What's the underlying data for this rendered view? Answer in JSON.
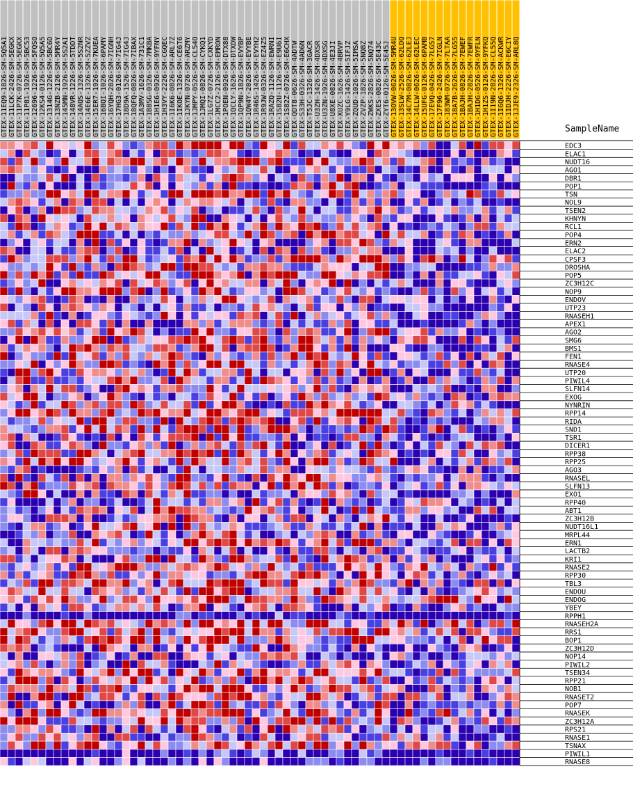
{
  "chart_data": {
    "type": "heatmap",
    "axis_title": "SampleName",
    "highlight_color": "#ffc000",
    "normal_header_color": "#c0c0c0",
    "scale_colors": [
      "#2a00b0",
      "#4a3fe0",
      "#8c8cf0",
      "#c8c8f8",
      "#ffc8e0",
      "#f08c8c",
      "#e04848",
      "#c00000"
    ],
    "columns": [
      {
        "label": "GTEX-11EQ9-1826-SM-5Q5A1",
        "highlight": false
      },
      {
        "label": "GTEX-11LCK-2426-SM-5EGKX",
        "highlight": false
      },
      {
        "label": "GTEX-11P7K-0726-SM-5EGKX",
        "highlight": false
      },
      {
        "label": "GTEX-11P81-1926-SM-5BC53",
        "highlight": false
      },
      {
        "label": "GTEX-12696-1226-SM-5FQSO",
        "highlight": false
      },
      {
        "label": "GTEX-12KS4-0126-SM-5Q5A5",
        "highlight": false
      },
      {
        "label": "GTEX-1314G-1226-SM-5BC6D",
        "highlight": false
      },
      {
        "label": "GTEX-13NZB-2126-SM-5MR4Y",
        "highlight": false
      },
      {
        "label": "GTEX-145MN-1926-SM-5S2AI",
        "highlight": false
      },
      {
        "label": "GTEX-148VR-1226-SM-5TDDT",
        "highlight": false
      },
      {
        "label": "GTEX-14AQS-1326-SM-5S2NR",
        "highlight": false
      },
      {
        "label": "GTEX-14E6E-1326-SM-5ZZVZ",
        "highlight": false
      },
      {
        "label": "GTEX-15ER7-1926-SM-7KUEA",
        "highlight": false
      },
      {
        "label": "GTEX-16BQI-1026-SM-6PAMY",
        "highlight": false
      },
      {
        "label": "GTEX-16YQH-2826-SM-7IGNH",
        "highlight": false
      },
      {
        "label": "GTEX-17HG3-0126-SM-7IG4J",
        "highlight": false
      },
      {
        "label": "GTEX-18D9A-1526-SM-7IG4J",
        "highlight": false
      },
      {
        "label": "GTEX-18QFQ-0826-SM-7IBAX",
        "highlight": false
      },
      {
        "label": "GTEX-1A3MV-1626-SM-731C1",
        "highlight": false
      },
      {
        "label": "GTEX-1B8SG-0326-SM-7MKBA",
        "highlight": false
      },
      {
        "label": "GTEX-1H1E6-0926-SM-9YFNY",
        "highlight": false
      },
      {
        "label": "GTEX-1H3VY-2226-SM-CGQEC",
        "highlight": false
      },
      {
        "label": "GTEX-1I6K6-0826-SM-ARL7Z",
        "highlight": false
      },
      {
        "label": "GTEX-1IKOE-1326-SM-CE6T6",
        "highlight": false
      },
      {
        "label": "GTEX-1JKYN-0726-SM-ARZMY",
        "highlight": false
      },
      {
        "label": "GTEX-1JMPY-0526-SM-CL54O",
        "highlight": false
      },
      {
        "label": "GTEX-1JMQI-0826-SM-CYKQ1",
        "highlight": false
      },
      {
        "label": "GTEX-1LG7Z-0726-SM-CXKYD",
        "highlight": false
      },
      {
        "label": "GTEX-1MCC2-2126-SM-EMRON",
        "highlight": false
      },
      {
        "label": "GTEX-1POEN-0926-SM-DTX88",
        "highlight": false
      },
      {
        "label": "GTEX-1QCLY-1626-SM-DTXDW",
        "highlight": false
      },
      {
        "label": "GTEX-1QP9N-1826-SM-EVYBP",
        "highlight": false
      },
      {
        "label": "GTEX-1QW4Y-2026-SM-EVYBE",
        "highlight": false
      },
      {
        "label": "GTEX-1R46S-1426-SM-EVYH2",
        "highlight": false
      },
      {
        "label": "GTEX-1R9JW-0326-SM-EZ4Z5",
        "highlight": false
      },
      {
        "label": "GTEX-1RAZQ-1126-SM-EWRNI",
        "highlight": false
      },
      {
        "label": "GTEX-1S82U-1126-SM-E9U6I",
        "highlight": false
      },
      {
        "label": "GTEX-1S82Z-0726-SM-E6CHX",
        "highlight": false
      },
      {
        "label": "GTEX-QDT8-0626-SM-4ADTW",
        "highlight": false
      },
      {
        "label": "GTEX-S33H-0326-SM-4AD6N",
        "highlight": false
      },
      {
        "label": "GTEX-T5JC-1326-SM-3GACR",
        "highlight": false
      },
      {
        "label": "GTEX-U3ZH-1426-SM-4DXSR",
        "highlight": false
      },
      {
        "label": "GTEX-U3ZN-1926-SM-4DXSG",
        "highlight": false
      },
      {
        "label": "GTEX-U8XE-0826-SM-4E3JI",
        "highlight": false
      },
      {
        "label": "GTEX-XUZC-1626-SM-4BRVP",
        "highlight": false
      },
      {
        "label": "GTEX-Y9LG-1426-SM-5IFJZ",
        "highlight": false
      },
      {
        "label": "GTEX-ZQUD-1026-SM-5IMSA",
        "highlight": false
      },
      {
        "label": "GTEX-ZVZP-1826-SM-5NQ8Z",
        "highlight": false
      },
      {
        "label": "GTEX-ZWKS-2826-SM-5NQ74",
        "highlight": false
      },
      {
        "label": "GTEX-ZXES-0826-SM-5E43C",
        "highlight": false
      },
      {
        "label": "GTEX-ZYT6-0126-SM-5E45J",
        "highlight": false
      },
      {
        "label": "GTEX-13OVW-0626-SM-5MR4U",
        "highlight": true
      },
      {
        "label": "GTEX-13SLW-2526-SM-62LDQ",
        "highlight": true
      },
      {
        "label": "GTEX-14C7M-0826-SM-62LEJ",
        "highlight": true
      },
      {
        "label": "GTEX-14LLW-0626-SM-62LEC",
        "highlight": true
      },
      {
        "label": "GTEX-15UFG-0126-SM-6PAMB",
        "highlight": true
      },
      {
        "label": "GTEX-17EVQ-0426-SM-7LG57",
        "highlight": true
      },
      {
        "label": "GTEX-17F96-2426-SM-7IGLN",
        "highlight": true
      },
      {
        "label": "GTEX-183WM-0726-SM-7LTAA",
        "highlight": true
      },
      {
        "label": "GTEX-18A7B-2626-SM-7LG55",
        "highlight": true
      },
      {
        "label": "GTEX-1BAJH-0826-SM-7EWEF",
        "highlight": true
      },
      {
        "label": "GTEX-1BAJH-2826-SM-7EWFR",
        "highlight": true
      },
      {
        "label": "GTEX-1H1DG-0526-SM-9YFLN",
        "highlight": true
      },
      {
        "label": "GTEX-1H1ZS-0126-SM-9YFKQ",
        "highlight": true
      },
      {
        "label": "GTEX-1I19N-2826-SM-CL55Q",
        "highlight": true
      },
      {
        "label": "GTEX-1IGQ6-1326-SM-ACKWR",
        "highlight": true
      },
      {
        "label": "GTEX-1IDJH-2226-SM-E6CIY",
        "highlight": true
      },
      {
        "label": "GTEX-1JJE9-2326-SM-ARL8Q",
        "highlight": true
      }
    ],
    "rows": [
      "EDC3",
      "ELAC1",
      "NUDT16",
      "AGO1",
      "DBR1",
      "POP1",
      "TSN",
      "NOL9",
      "TSEN2",
      "KHNYN",
      "RCL1",
      "POP4",
      "ERN2",
      "ELAC2",
      "CPSF3",
      "DROSHA",
      "POP5",
      "ZC3H12C",
      "NOP9",
      "ENDOV",
      "UTP23",
      "RNASEH1",
      "APEX1",
      "AGO2",
      "SMG6",
      "BMS1",
      "FEN1",
      "RNASE4",
      "UTP20",
      "PIWIL4",
      "SLFN14",
      "EXOG",
      "NYNRIN",
      "RPP14",
      "RIDA",
      "SND1",
      "TSR1",
      "DICER1",
      "RPP38",
      "RPP25",
      "AGO3",
      "RNASEL",
      "SLFN13",
      "EXO1",
      "RPP40",
      "ABT1",
      "ZC3H12B",
      "NUDT16L1",
      "MRPL44",
      "ERN1",
      "LACTB2",
      "KRI1",
      "RNASE2",
      "RPP30",
      "TBL3",
      "ENDOU",
      "ENDOG",
      "YBEY",
      "RPPH1",
      "RNASEH2A",
      "RRS1",
      "BOP1",
      "ZC3H12D",
      "NOP14",
      "PIWIL2",
      "TSEN34",
      "RPP21",
      "NOB1",
      "RNASET2",
      "POP7",
      "RNASEK",
      "ZC3H12A",
      "RPS21",
      "RNASE1",
      "TSNAX",
      "PIWIL1",
      "RNASE8"
    ]
  }
}
